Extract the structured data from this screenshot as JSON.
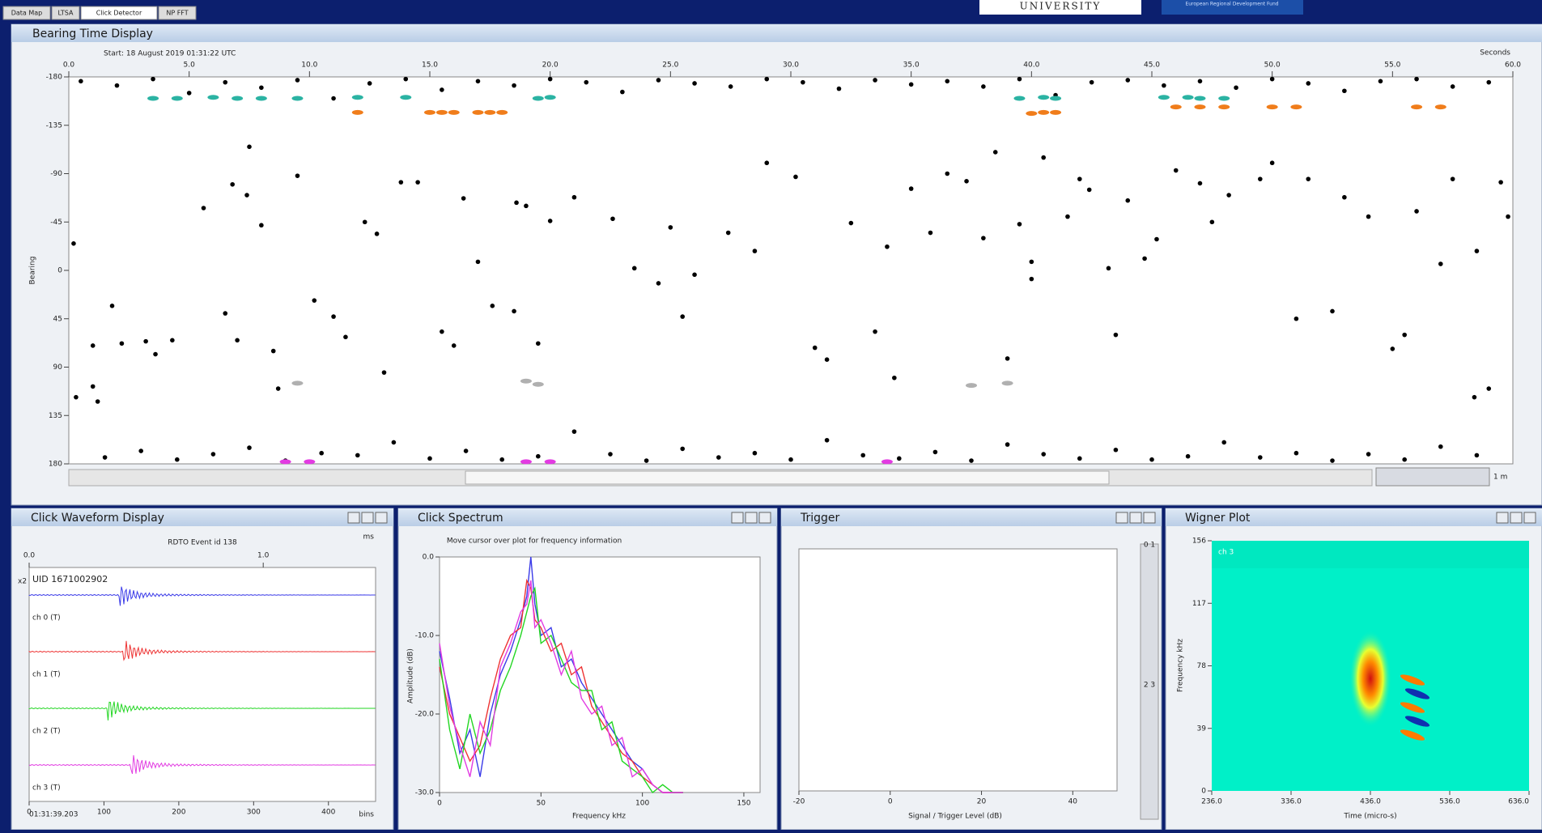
{
  "tabs": [
    "Data Map",
    "LTSA",
    "Click Detector",
    "NP FFT"
  ],
  "logo": {
    "university": "UNIVERSITY",
    "fund": "European Regional Development Fund"
  },
  "bearing_time": {
    "title": "Bearing Time Display",
    "start": "Start: 18 August 2019 01:31:22 UTC",
    "x_unit": "Seconds",
    "y_label": "Bearing",
    "xlim": [
      0,
      60
    ],
    "xticks": [
      {
        "value": 0,
        "label": "0.0"
      },
      {
        "value": 5,
        "label": "5.0"
      },
      {
        "value": 10,
        "label": "10.0"
      },
      {
        "value": 15,
        "label": "15.0"
      },
      {
        "value": 20,
        "label": "20.0"
      },
      {
        "value": 25,
        "label": "25.0"
      },
      {
        "value": 30,
        "label": "30.0"
      },
      {
        "value": 35,
        "label": "35.0"
      },
      {
        "value": 40,
        "label": "40.0"
      },
      {
        "value": 45,
        "label": "45.0"
      },
      {
        "value": 50,
        "label": "50.0"
      },
      {
        "value": 55,
        "label": "55.0"
      },
      {
        "value": 60,
        "label": "60.0"
      }
    ],
    "ylim": [
      -180,
      180
    ],
    "yticks": [
      -180,
      -135,
      -90,
      -45,
      0,
      45,
      90,
      135,
      180
    ],
    "span": "1 m",
    "clicks": {
      "color": "#000000",
      "x": [
        1,
        0.3,
        1.2,
        0.2,
        1.8,
        2.2,
        1,
        3.2,
        3.6,
        4.3,
        5.6,
        6.5,
        7,
        6.8,
        7.4,
        7.5,
        8,
        8.5,
        8.7,
        9.5,
        10.2,
        11,
        11.5,
        12.3,
        12.8,
        13.1,
        13.8,
        14.5,
        15.5,
        16,
        16.4,
        17,
        17.6,
        18.6,
        18.5,
        19,
        19.5,
        20,
        21,
        22.6,
        23.5,
        24.5,
        25,
        25.5,
        26,
        27.4,
        28.5,
        29,
        30.2,
        31,
        31.5,
        32.5,
        34,
        33.5,
        34.3,
        35,
        35.8,
        36.5,
        37.3,
        38,
        38.5,
        39,
        39.5,
        40,
        40,
        40.5,
        41.5,
        42,
        42.4,
        43.2,
        43.5,
        44,
        44.7,
        45.2,
        46,
        47,
        47.5,
        48.2,
        49.5,
        50,
        51,
        51.5,
        52.5,
        53,
        54,
        55,
        55.5,
        56,
        57,
        57.5,
        58.5,
        59.5,
        59.8,
        59,
        58.4,
        0.5,
        2,
        3.5,
        5,
        6.5,
        8,
        9.5,
        11,
        12.5,
        14,
        15.5,
        17,
        18.5,
        20,
        21.5,
        23,
        24.5,
        26,
        27.5,
        29,
        30.5,
        32,
        33.5,
        35,
        36.5,
        38,
        39.5,
        41,
        42.5,
        44,
        45.5,
        47,
        48.5,
        50,
        51.5,
        53,
        54.5,
        56,
        57.5,
        59,
        1.5,
        3,
        4.5,
        6,
        7.5,
        9,
        10.5,
        12,
        13.5,
        15,
        16.5,
        18,
        19.5,
        21,
        22.5,
        24,
        25.5,
        27,
        28.5,
        30,
        31.5,
        33,
        34.5,
        36,
        37.5,
        39,
        40.5,
        42,
        43.5,
        45,
        46.5,
        48,
        49.5,
        51,
        52.5,
        54,
        55.5,
        57,
        58.5
      ],
      "y": [
        108,
        118,
        122,
        -25,
        33,
        68,
        70,
        66,
        78,
        65,
        -58,
        40,
        65,
        -80,
        -70,
        -115,
        -42,
        75,
        110,
        -88,
        28,
        43,
        62,
        -45,
        -34,
        95,
        -82,
        -82,
        57,
        70,
        -67,
        -8,
        33,
        -63,
        38,
        -60,
        68,
        -46,
        -68,
        -48,
        -2,
        12,
        -40,
        43,
        4,
        -35,
        -18,
        -100,
        -87,
        72,
        83,
        -44,
        -22,
        57,
        100,
        -76,
        -35,
        -90,
        -83,
        -30,
        -110,
        82,
        -43,
        -8,
        8,
        -105,
        -50,
        -85,
        -75,
        -2,
        60,
        -65,
        -11,
        -29,
        -93,
        -81,
        -45,
        -70,
        -85,
        -100,
        45,
        -85,
        38,
        -68,
        -50,
        73,
        60,
        -55,
        -6,
        -85,
        -18,
        -82,
        -50,
        110,
        118,
        -176,
        -172,
        -178,
        -165,
        -175,
        -170,
        -177,
        -160,
        -174,
        -178,
        -168,
        -176,
        -172,
        -178,
        -175,
        -166,
        -177,
        -174,
        -171,
        -178,
        -175,
        -169,
        -177,
        -173,
        -176,
        -171,
        -178,
        -163,
        -175,
        -177,
        -172,
        -176,
        -170,
        -178,
        -174,
        -167,
        -176,
        -178,
        -171,
        -175,
        174,
        168,
        176,
        171,
        165,
        177,
        170,
        172,
        160,
        175,
        168,
        176,
        173,
        150,
        171,
        177,
        166,
        174,
        170,
        176,
        158,
        172,
        175,
        169,
        177,
        162,
        171,
        175,
        167,
        176,
        173,
        160,
        174,
        170,
        177,
        171,
        176,
        164,
        172
      ]
    },
    "tracks": [
      {
        "color": "#2bb3a3",
        "x": [
          3.5,
          4.5,
          6,
          7,
          8,
          9.5,
          12,
          14,
          19.5,
          20,
          39.5,
          40.5,
          41,
          45.5,
          46.5,
          47,
          48
        ],
        "y": [
          -160,
          -160,
          -161,
          -160,
          -160,
          -160,
          -161,
          -161,
          -160,
          -161,
          -160,
          -161,
          -160,
          -161,
          -161,
          -160,
          -160
        ]
      },
      {
        "color": "#f07d1b",
        "x": [
          12,
          15,
          15.5,
          16,
          17,
          17.5,
          18,
          40,
          40.5,
          41,
          46,
          47,
          48,
          50,
          51,
          56,
          57
        ],
        "y": [
          -147,
          -147,
          -147,
          -147,
          -147,
          -147,
          -147,
          -146,
          -147,
          -147,
          -152,
          -152,
          -152,
          -152,
          -152,
          -152,
          -152
        ]
      },
      {
        "color": "#b0b0b0",
        "x": [
          9.5,
          19,
          19.5,
          37.5,
          39
        ],
        "y": [
          105,
          103,
          106,
          107,
          105
        ]
      },
      {
        "color": "#e23be2",
        "x": [
          9,
          10,
          19,
          20,
          34
        ],
        "y": [
          178,
          178,
          178,
          178,
          178
        ]
      }
    ]
  },
  "waveform": {
    "title": "Click Waveform Display",
    "event": "RDTO Event id 138",
    "uid": "UID 1671002902",
    "top_unit": "ms",
    "top_xlim": [
      0,
      1.48
    ],
    "top_xticks": [
      {
        "value": 0,
        "label": "0.0"
      },
      {
        "value": 1,
        "label": "1.0"
      }
    ],
    "xlim": [
      0,
      463
    ],
    "xticks": [
      0,
      100,
      200,
      300,
      400
    ],
    "x_unit": "bins",
    "time": "01:31:39.203",
    "scale": "x2",
    "channels": [
      {
        "name": "ch 0 (T)",
        "color": "#3a3ae8",
        "click_bin": 120
      },
      {
        "name": "ch 1 (T)",
        "color": "#ee3333",
        "click_bin": 126
      },
      {
        "name": "ch 2 (T)",
        "color": "#22d622",
        "click_bin": 104
      },
      {
        "name": "ch 3 (T)",
        "color": "#e23be2",
        "click_bin": 136
      }
    ]
  },
  "spectrum": {
    "title": "Click Spectrum",
    "hint": "Move cursor over plot for frequency information",
    "y_label": "Amplitude (dB)",
    "x_label": "Frequency kHz",
    "xlim": [
      0,
      158
    ],
    "xticks": [
      0,
      50,
      100,
      150
    ],
    "ylim": [
      -30,
      0
    ],
    "yticks": [
      {
        "value": 0,
        "label": "0.0"
      },
      {
        "value": -10,
        "label": "-10.0"
      },
      {
        "value": -20,
        "label": "-20.0"
      },
      {
        "value": -30,
        "label": "-30.0"
      }
    ],
    "x": [
      0,
      5,
      10,
      15,
      20,
      25,
      30,
      35,
      40,
      43,
      45,
      47,
      50,
      55,
      60,
      65,
      70,
      75,
      80,
      85,
      90,
      95,
      100,
      105,
      110,
      115,
      120
    ],
    "series": [
      {
        "color": "#3a3ae8",
        "values": [
          -12,
          -18,
          -25,
          -22,
          -28,
          -20,
          -15,
          -12,
          -8,
          -5,
          0,
          -6,
          -10,
          -9,
          -14,
          -13,
          -16,
          -18,
          -20,
          -22,
          -24,
          -26,
          -27,
          -29,
          -30,
          -30,
          -30
        ]
      },
      {
        "color": "#ee3333",
        "values": [
          -14,
          -20,
          -23,
          -26,
          -24,
          -18,
          -13,
          -10,
          -9,
          -3,
          -4,
          -8,
          -9,
          -12,
          -11,
          -15,
          -14,
          -19,
          -21,
          -23,
          -25,
          -26,
          -28,
          -29,
          -30,
          -30,
          -30
        ]
      },
      {
        "color": "#22d622",
        "values": [
          -13,
          -22,
          -27,
          -20,
          -25,
          -22,
          -17,
          -14,
          -10,
          -7,
          -5,
          -4,
          -11,
          -10,
          -13,
          -16,
          -17,
          -17,
          -22,
          -21,
          -26,
          -27,
          -28,
          -30,
          -29,
          -30,
          -30
        ]
      },
      {
        "color": "#e23be2",
        "values": [
          -11,
          -19,
          -24,
          -28,
          -21,
          -24,
          -14,
          -11,
          -7,
          -6,
          -3,
          -9,
          -8,
          -11,
          -15,
          -12,
          -18,
          -20,
          -19,
          -24,
          -23,
          -28,
          -27,
          -29,
          -30,
          -30,
          -30
        ]
      }
    ]
  },
  "trigger": {
    "title": "Trigger",
    "x_label": "Signal / Trigger Level (dB)",
    "xlim": [
      -20,
      49.7
    ],
    "xticks": [
      -20,
      0,
      20,
      40
    ],
    "meters": [
      "0 1",
      "2 3"
    ]
  },
  "wigner": {
    "title": "Wigner Plot",
    "channel": "ch 3",
    "y_label": "Frequency kHz",
    "x_label": "Time (micro-s)",
    "ylim": [
      0,
      156
    ],
    "yticks": [
      0,
      39,
      78,
      117,
      156
    ],
    "xlim": [
      236,
      636
    ],
    "xticks": [
      {
        "value": 236,
        "label": "236.0"
      },
      {
        "value": 336,
        "label": "336.0"
      },
      {
        "value": 436,
        "label": "436.0"
      },
      {
        "value": 536,
        "label": "536.0"
      },
      {
        "value": 636,
        "label": "636.0"
      }
    ]
  }
}
